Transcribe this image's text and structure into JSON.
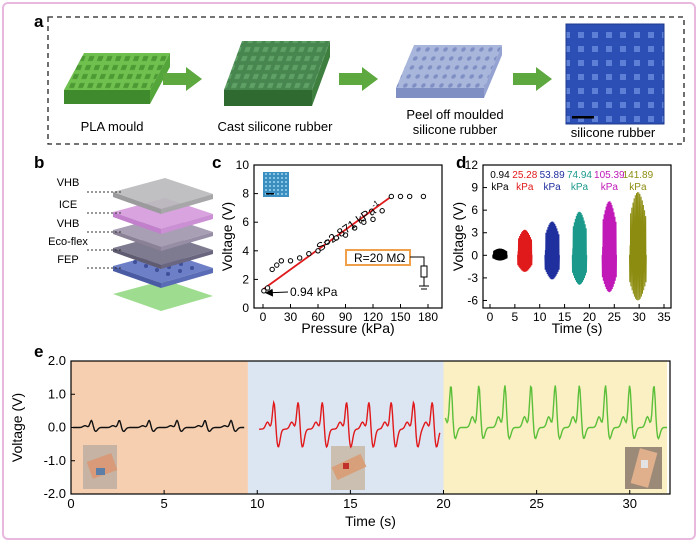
{
  "panels": {
    "a": "a",
    "b": "b",
    "c": "c",
    "d": "d",
    "e": "e"
  },
  "panel_a": {
    "steps": [
      "PLA mould",
      "Cast silicone rubber",
      "Peel off moulded\nsilicone rubber",
      "silicone rubber"
    ]
  },
  "panel_b": {
    "layers": [
      "VHB",
      "ICE",
      "VHB",
      "Eco-flex",
      "FEP"
    ]
  },
  "chart_data": [
    {
      "panel": "c",
      "type": "scatter",
      "xlabel": "Pressure (kPa)",
      "ylabel": "Voltage (V)",
      "xlim": [
        0,
        180
      ],
      "ylim": [
        0,
        10
      ],
      "xticks": [
        0,
        30,
        60,
        90,
        120,
        150,
        180
      ],
      "yticks": [
        0,
        2,
        4,
        6,
        8,
        10
      ],
      "x": [
        0.94,
        5,
        10,
        15,
        20,
        30,
        40,
        50,
        60,
        70,
        80,
        90,
        100,
        110,
        120,
        130,
        140,
        150,
        160,
        175
      ],
      "y": [
        1.2,
        1.4,
        2.7,
        3.0,
        3.3,
        3.3,
        3.5,
        3.8,
        4.0,
        4.6,
        4.9,
        5.1,
        5.6,
        6.0,
        6.2,
        6.8,
        7.8,
        7.8,
        7.8,
        7.8
      ],
      "fit_line": {
        "x": [
          0,
          140
        ],
        "y": [
          1.3,
          7.8
        ]
      },
      "annotations": {
        "slope": "S=2.871 kPa",
        "slope_sup": "-1",
        "min_pressure": "0.94 kPa",
        "resistance": "R=20 MΩ"
      },
      "colors": {
        "points": "#000000",
        "fit": "#e0191b"
      }
    },
    {
      "panel": "d",
      "type": "line",
      "xlabel": "Time (s)",
      "ylabel": "Voltage (V)",
      "xlim": [
        0,
        35
      ],
      "ylim": [
        -7,
        12
      ],
      "xticks": [
        0,
        5,
        10,
        15,
        20,
        25,
        30,
        35
      ],
      "yticks": [
        -6,
        -3,
        0,
        3,
        6,
        9,
        12
      ],
      "series": [
        {
          "label": "0.94",
          "unit": "kPa",
          "color": "#000000",
          "t_range": [
            0.5,
            3.5
          ],
          "amp_pos": 0.9,
          "amp_neg": 0.7
        },
        {
          "label": "25.28",
          "unit": "kPa",
          "color": "#e0191b",
          "t_range": [
            5.5,
            8.5
          ],
          "amp_pos": 3.4,
          "amp_neg": 2.2
        },
        {
          "label": "53.89",
          "unit": "kPa",
          "color": "#1f2f9e",
          "t_range": [
            11,
            14
          ],
          "amp_pos": 4.5,
          "amp_neg": 3.2
        },
        {
          "label": "74.94",
          "unit": "kPa",
          "color": "#1b9a8c",
          "t_range": [
            16.5,
            19.5
          ],
          "amp_pos": 5.8,
          "amp_neg": 3.9
        },
        {
          "label": "105.39",
          "unit": "kPa",
          "color": "#c019b8",
          "t_range": [
            22.5,
            25.5
          ],
          "amp_pos": 7.2,
          "amp_neg": 4.9
        },
        {
          "label": "141.89",
          "unit": "kPa",
          "color": "#8c8c10",
          "t_range": [
            28,
            31.5
          ],
          "amp_pos": 8.4,
          "amp_neg": 6.0
        }
      ]
    },
    {
      "panel": "e",
      "type": "line",
      "xlabel": "Time (s)",
      "ylabel": "Voltage (V)",
      "xlim": [
        0,
        32
      ],
      "ylim": [
        -2,
        2
      ],
      "xticks": [
        0,
        5,
        10,
        15,
        20,
        25,
        30
      ],
      "yticks": [
        -2.0,
        -1.0,
        0.0,
        1.0,
        2.0
      ],
      "ytick_labels": [
        "-2.0",
        "-1.0",
        "0.0",
        "1.0",
        "2.0"
      ],
      "regions": [
        {
          "t_range": [
            0,
            9.5
          ],
          "color": "#f6cfb1"
        },
        {
          "t_range": [
            9.5,
            20
          ],
          "color": "#dce6f3"
        },
        {
          "t_range": [
            20,
            32
          ],
          "color": "#fbf0c3"
        }
      ],
      "series": [
        {
          "color": "#111111",
          "t_range": [
            0.1,
            9.3
          ],
          "peaks": [
            1.1,
            2.6,
            4.2,
            5.7,
            7.2,
            8.6
          ],
          "amp": 0.22,
          "trough": -0.12,
          "base": 0.0
        },
        {
          "color": "#e0191b",
          "t_range": [
            10.1,
            19.8
          ],
          "peaks": [
            10.9,
            12.2,
            13.5,
            14.8,
            16.0,
            17.2,
            18.4,
            19.4
          ],
          "amp": 0.85,
          "trough": -0.55,
          "base": -0.05
        },
        {
          "color": "#5bbf3a",
          "t_range": [
            20.1,
            32
          ],
          "peaks": [
            20.4,
            21.9,
            23.3,
            24.7,
            26.0,
            27.3,
            28.7,
            30.0,
            31.3
          ],
          "amp": 1.3,
          "trough": -0.35,
          "base": 0.0
        }
      ]
    }
  ]
}
